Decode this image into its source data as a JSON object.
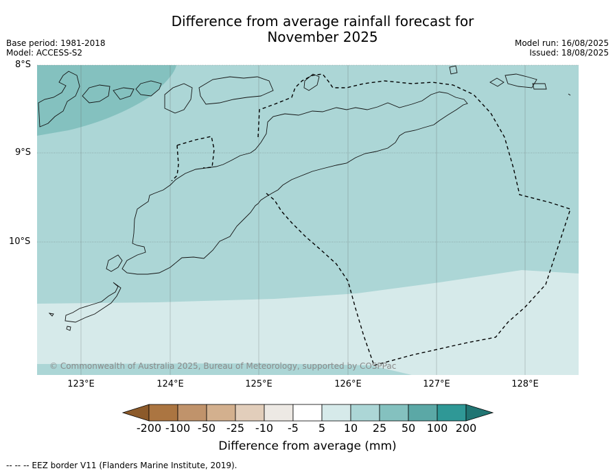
{
  "title_line1": "Difference from average rainfall forecast for",
  "title_line2": "November 2025",
  "meta_left": [
    "Base period: 1981-2018",
    "Model: ACCESS-S2"
  ],
  "meta_right": [
    "Model run: 16/08/2025",
    "Issued: 18/08/2025"
  ],
  "lat_labels": [
    "8°S",
    "9°S",
    "10°S"
  ],
  "lon_labels": [
    "123°E",
    "124°E",
    "125°E",
    "126°E",
    "127°E",
    "128°E"
  ],
  "copyright": "© Commonwealth of Australia 2025, Bureau of Meteorology, supported by COSPPac",
  "colorbar": {
    "title": "Difference from average (mm)",
    "tick_labels": [
      "-200",
      "-100",
      "-50",
      "-25",
      "-10",
      "-5",
      "5",
      "10",
      "25",
      "50",
      "100",
      "200"
    ],
    "colors": [
      "#8c5a2a",
      "#ab7541",
      "#c0936b",
      "#d3b08e",
      "#e2cebb",
      "#ede9e4",
      "#ffffff",
      "#d6eaea",
      "#acd6d6",
      "#84c1bf",
      "#5ba8a6",
      "#2f9896",
      "#217573"
    ]
  },
  "footnote": "--  --  -- EEZ border V11 (Flanders Marine Institute, 2019).",
  "map_colors": {
    "band_5_10": "#d6eaea",
    "band_10_25": "#acd6d6",
    "band_25_50": "#84c1bf"
  }
}
